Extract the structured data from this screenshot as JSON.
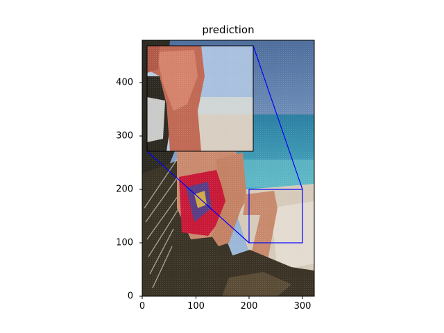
{
  "figure": {
    "title": "prediction",
    "x_ticks": [
      "0",
      "100",
      "200",
      "300"
    ],
    "y_ticks": [
      "0",
      "100",
      "200",
      "300",
      "400"
    ],
    "x_tick_values": [
      0,
      100,
      200,
      300
    ],
    "y_tick_values": [
      0,
      100,
      200,
      300,
      400
    ],
    "x_range": [
      0,
      320
    ],
    "y_range": [
      0,
      480
    ],
    "zoom_region": {
      "x": [
        200,
        300
      ],
      "y": [
        100,
        200
      ]
    },
    "colors": {
      "zoom_box": "#0000ff",
      "sky_top": "#5577aa",
      "sky_bottom": "#9cb9d8",
      "sea": "#2f8fae",
      "sand": "#d9cfc0",
      "skin": "#c98a6f",
      "shorts_red": "#d01a3a",
      "palm_dark": "#2a2a20"
    }
  }
}
